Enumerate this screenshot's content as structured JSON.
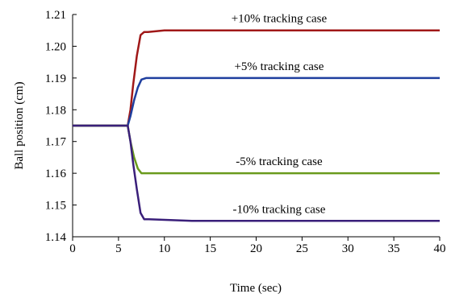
{
  "chart_data": {
    "type": "line",
    "title": "",
    "xlabel": "Time (sec)",
    "ylabel": "Ball position (cm)",
    "xlim": [
      0,
      40
    ],
    "ylim": [
      1.14,
      1.21
    ],
    "x_ticks": [
      "0",
      "5",
      "10",
      "15",
      "20",
      "25",
      "30",
      "35",
      "40"
    ],
    "y_ticks": [
      "1.14",
      "1.15",
      "1.16",
      "1.17",
      "1.18",
      "1.19",
      "1.20",
      "1.21"
    ],
    "grid": false,
    "legend": "none",
    "series": [
      {
        "color": "#a01818",
        "annotation": "+10% tracking case",
        "x": [
          0,
          2,
          6,
          6.3,
          6.6,
          7.0,
          7.4,
          7.8,
          8.2,
          10,
          40
        ],
        "y": [
          1.175,
          1.175,
          1.175,
          1.18,
          1.188,
          1.197,
          1.2035,
          1.2045,
          1.2045,
          1.205,
          1.205
        ]
      },
      {
        "color": "#1f3f9f",
        "annotation": "+5% tracking case",
        "x": [
          0,
          2,
          6,
          6.3,
          6.7,
          7.1,
          7.5,
          8.0,
          10,
          40
        ],
        "y": [
          1.175,
          1.175,
          1.175,
          1.178,
          1.183,
          1.187,
          1.1895,
          1.19,
          1.19,
          1.19
        ]
      },
      {
        "color": "#6a9a1c",
        "annotation": "-5% tracking case",
        "x": [
          0,
          2,
          6,
          6.3,
          6.7,
          7.1,
          7.5,
          8.0,
          10,
          40
        ],
        "y": [
          1.175,
          1.175,
          1.175,
          1.17,
          1.165,
          1.1615,
          1.16,
          1.16,
          1.16,
          1.16
        ]
      },
      {
        "color": "#3a1f7a",
        "annotation": "-10% tracking case",
        "x": [
          0,
          2,
          6,
          6.3,
          6.6,
          7.0,
          7.4,
          7.8,
          8.3,
          13,
          40
        ],
        "y": [
          1.175,
          1.175,
          1.175,
          1.17,
          1.163,
          1.155,
          1.1475,
          1.1455,
          1.1455,
          1.145,
          1.145
        ]
      }
    ]
  }
}
